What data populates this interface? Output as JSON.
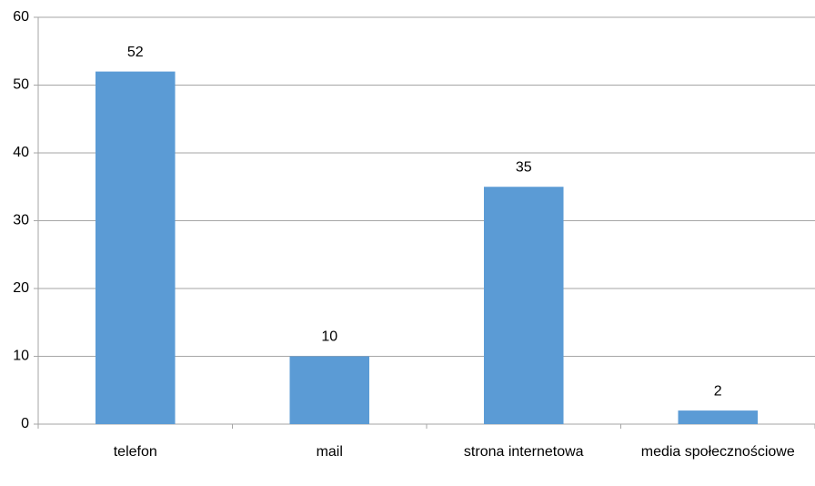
{
  "chart_data": {
    "type": "bar",
    "categories": [
      "telefon",
      "mail",
      "strona internetowa",
      "media społecznościowe"
    ],
    "values": [
      52,
      10,
      35,
      2
    ],
    "color": "#5b9bd5",
    "ylim": [
      0,
      60
    ],
    "yticks": [
      0,
      10,
      20,
      30,
      40,
      50,
      60
    ],
    "grid": true
  }
}
